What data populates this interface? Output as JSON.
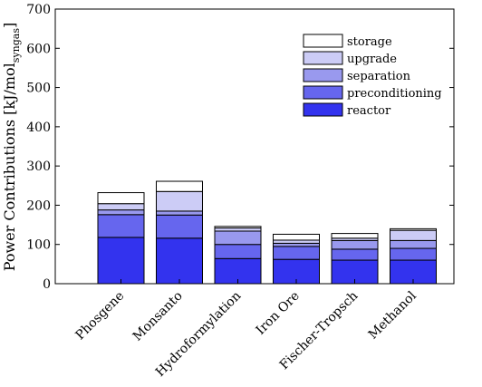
{
  "chart_data": {
    "type": "bar",
    "stacked": true,
    "title": "",
    "xlabel": "",
    "ylabel": {
      "main": "Power Contributions [kJ/mol",
      "sub": "syngas",
      "close": "]"
    },
    "ylim": [
      0,
      700
    ],
    "yticks": [
      0,
      100,
      200,
      300,
      400,
      500,
      600,
      700
    ],
    "categories": [
      "Phosgene",
      "Monsanto",
      "Hydroformylation",
      "Iron Ore",
      "Fischer-Tropsch",
      "Methanol"
    ],
    "series": [
      {
        "name": "reactor",
        "color": "#3333ee",
        "values": [
          118,
          116,
          64,
          62,
          60,
          60
        ]
      },
      {
        "name": "preconditioning",
        "color": "#6666ee",
        "values": [
          58,
          59,
          36,
          33,
          28,
          30
        ]
      },
      {
        "name": "separation",
        "color": "#9999ee",
        "values": [
          12,
          10,
          34,
          8,
          22,
          20
        ]
      },
      {
        "name": "upgrade",
        "color": "#ccccf6",
        "values": [
          16,
          50,
          8,
          8,
          6,
          26
        ]
      },
      {
        "name": "storage",
        "color": "#ffffff",
        "values": [
          28,
          26,
          4,
          15,
          12,
          4
        ]
      }
    ],
    "legend_position": "top-right",
    "legend_order": [
      "storage",
      "upgrade",
      "separation",
      "preconditioning",
      "reactor"
    ],
    "grid": false
  }
}
